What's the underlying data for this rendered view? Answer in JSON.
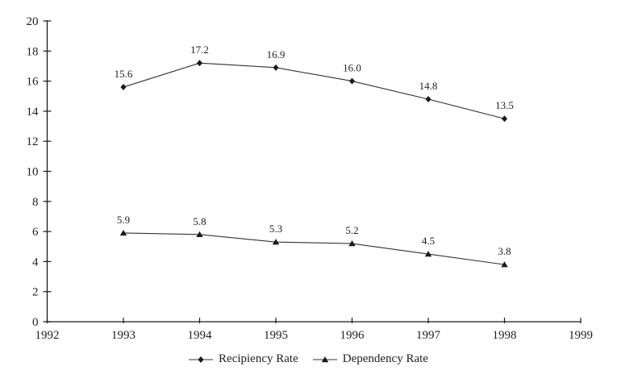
{
  "chart_data": {
    "type": "line",
    "title": "",
    "xlabel": "",
    "ylabel": "",
    "x": [
      1993,
      1994,
      1995,
      1996,
      1997,
      1998
    ],
    "series": [
      {
        "name": "Recipiency Rate",
        "marker": "diamond",
        "values": [
          15.6,
          17.2,
          16.9,
          16.0,
          14.8,
          13.5
        ],
        "labels": [
          "15.6",
          "17.2",
          "16.9",
          "16.0",
          "14.8",
          "13.5"
        ]
      },
      {
        "name": "Dependency Rate",
        "marker": "triangle",
        "values": [
          5.9,
          5.8,
          5.3,
          5.2,
          4.5,
          3.8
        ],
        "labels": [
          "5.9",
          "5.8",
          "5.3",
          "5.2",
          "4.5",
          "3.8"
        ]
      }
    ],
    "x_ticks": [
      "1992",
      "1993",
      "1994",
      "1995",
      "1996",
      "1997",
      "1998",
      "1999"
    ],
    "y_ticks": [
      "0",
      "2",
      "4",
      "6",
      "8",
      "10",
      "12",
      "14",
      "16",
      "18",
      "20"
    ],
    "xlim": [
      1992,
      1999
    ],
    "ylim": [
      0,
      20
    ],
    "grid": false,
    "legend_position": "bottom-center",
    "colors": {
      "line": "#333333",
      "marker": "#1a1a1a",
      "text": "#1f1f1f",
      "axis": "#1a1a1a",
      "background": "#ffffff"
    }
  }
}
